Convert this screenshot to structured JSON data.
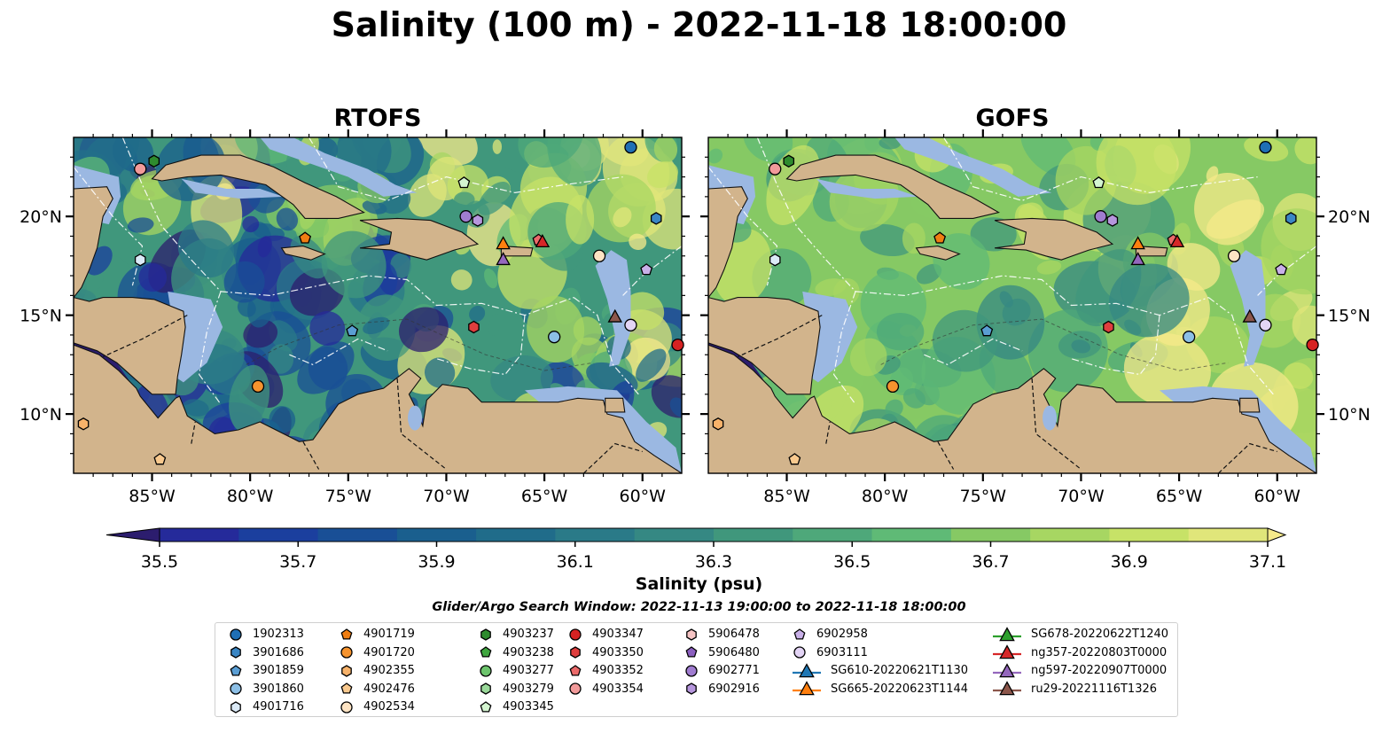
{
  "title": "Salinity (100 m) - 2022-11-18 18:00:00",
  "panels": [
    {
      "title": "RTOFS",
      "scheme": "rtofs"
    },
    {
      "title": "GOFS",
      "scheme": "gofs"
    }
  ],
  "lon_ticks": [
    "85°W",
    "80°W",
    "75°W",
    "70°W",
    "65°W",
    "60°W"
  ],
  "lat_ticks": [
    "20°N",
    "15°N",
    "10°N"
  ],
  "colorbar": {
    "label": "Salinity (psu)",
    "ticks": [
      "35.5",
      "35.7",
      "35.9",
      "36.1",
      "36.3",
      "36.5",
      "36.7",
      "36.9",
      "37.1"
    ],
    "colors": [
      "#2c1d6e",
      "#252a9a",
      "#1b3f9e",
      "#194f96",
      "#1a5f8e",
      "#206c8a",
      "#2a7a88",
      "#358883",
      "#40977c",
      "#4ea87a",
      "#5fba76",
      "#86c964",
      "#a7d662",
      "#c7e267",
      "#e0e67a",
      "#f6ea8a"
    ]
  },
  "search_window": "Glider/Argo Search Window: 2022-11-13 19:00:00 to 2022-11-18 18:00:00",
  "legend": [
    {
      "label": "1902313",
      "marker": "circle",
      "color": "#1f6fb5"
    },
    {
      "label": "3901686",
      "marker": "hexagon",
      "color": "#3a86c4"
    },
    {
      "label": "3901859",
      "marker": "pentagon",
      "color": "#5a9ed4"
    },
    {
      "label": "3901860",
      "marker": "circle",
      "color": "#8cbfe6"
    },
    {
      "label": "4901716",
      "marker": "hexagon",
      "color": "#dbeaf7"
    },
    {
      "label": "4901719",
      "marker": "pentagon",
      "color": "#f07e12"
    },
    {
      "label": "4901720",
      "marker": "circle",
      "color": "#f6932e"
    },
    {
      "label": "4902355",
      "marker": "hexagon",
      "color": "#f7b26a"
    },
    {
      "label": "4902476",
      "marker": "pentagon",
      "color": "#f9c98e"
    },
    {
      "label": "4902534",
      "marker": "circle",
      "color": "#fde3c3"
    },
    {
      "label": "4903237",
      "marker": "hexagon",
      "color": "#2e8b2e"
    },
    {
      "label": "4903238",
      "marker": "pentagon",
      "color": "#3fa63f"
    },
    {
      "label": "4903277",
      "marker": "circle",
      "color": "#6cc46c"
    },
    {
      "label": "4903279",
      "marker": "hexagon",
      "color": "#9ad99a"
    },
    {
      "label": "4903345",
      "marker": "pentagon",
      "color": "#d4f5d0"
    },
    {
      "label": "4903347",
      "marker": "circle",
      "color": "#d62222"
    },
    {
      "label": "4903350",
      "marker": "hexagon",
      "color": "#e03e3e"
    },
    {
      "label": "4903352",
      "marker": "pentagon",
      "color": "#eb6a6a"
    },
    {
      "label": "4903354",
      "marker": "circle",
      "color": "#f29a9a"
    },
    {
      "label": "5906478",
      "marker": "hexagon",
      "color": "#f6c4c4"
    },
    {
      "label": "5906480",
      "marker": "pentagon",
      "color": "#8b5fbf"
    },
    {
      "label": "6902771",
      "marker": "circle",
      "color": "#a07cd0"
    },
    {
      "label": "6902916",
      "marker": "hexagon",
      "color": "#b696dd"
    },
    {
      "label": "6902958",
      "marker": "pentagon",
      "color": "#c9b0e8"
    },
    {
      "label": "6903111",
      "marker": "circle",
      "color": "#e3d4f5"
    },
    {
      "label": "SG610-20220621T1130",
      "marker": "triangle",
      "color": "#1f77b4",
      "line": true
    },
    {
      "label": "SG665-20220623T1144",
      "marker": "triangle",
      "color": "#ff7f0e",
      "line": true
    },
    {
      "label": "SG678-20220622T1240",
      "marker": "triangle",
      "color": "#2ca02c",
      "line": true
    },
    {
      "label": "ng357-20220803T0000",
      "marker": "triangle",
      "color": "#d62728",
      "line": true
    },
    {
      "label": "ng597-20220907T0000",
      "marker": "triangle",
      "color": "#9467bd",
      "line": true
    },
    {
      "label": "ru29-20221116T1326",
      "marker": "triangle",
      "color": "#8c564b",
      "line": true
    }
  ],
  "map_points": [
    {
      "lon": -60.6,
      "lat": 23.5,
      "marker": "circle",
      "color": "#1f6fb5"
    },
    {
      "lon": -59.3,
      "lat": 19.9,
      "marker": "hexagon",
      "color": "#3a86c4"
    },
    {
      "lon": -74.8,
      "lat": 14.2,
      "marker": "pentagon",
      "color": "#5a9ed4"
    },
    {
      "lon": -64.5,
      "lat": 13.9,
      "marker": "circle",
      "color": "#8cbfe6"
    },
    {
      "lon": -85.6,
      "lat": 17.8,
      "marker": "hexagon",
      "color": "#dbeaf7"
    },
    {
      "lon": -77.2,
      "lat": 18.9,
      "marker": "pentagon",
      "color": "#f07e12"
    },
    {
      "lon": -79.6,
      "lat": 11.4,
      "marker": "circle",
      "color": "#f6932e"
    },
    {
      "lon": -88.5,
      "lat": 9.5,
      "marker": "hexagon",
      "color": "#f7b26a"
    },
    {
      "lon": -84.6,
      "lat": 7.7,
      "marker": "pentagon",
      "color": "#f9c98e"
    },
    {
      "lon": -62.2,
      "lat": 18.0,
      "marker": "circle",
      "color": "#fde3c3"
    },
    {
      "lon": -84.9,
      "lat": 22.8,
      "marker": "hexagon",
      "color": "#2e8b2e"
    },
    {
      "lon": -69.1,
      "lat": 21.7,
      "marker": "pentagon",
      "color": "#d4f5d0"
    },
    {
      "lon": -58.2,
      "lat": 13.5,
      "marker": "circle",
      "color": "#d62222"
    },
    {
      "lon": -68.6,
      "lat": 14.4,
      "marker": "hexagon",
      "color": "#e03e3e"
    },
    {
      "lon": -65.3,
      "lat": 18.8,
      "marker": "pentagon",
      "color": "#eb6a6a"
    },
    {
      "lon": -85.6,
      "lat": 22.4,
      "marker": "circle",
      "color": "#f29a9a"
    },
    {
      "lon": -69.0,
      "lat": 20.0,
      "marker": "circle",
      "color": "#a07cd0"
    },
    {
      "lon": -68.4,
      "lat": 19.8,
      "marker": "hexagon",
      "color": "#b696dd"
    },
    {
      "lon": -59.8,
      "lat": 17.3,
      "marker": "pentagon",
      "color": "#c9b0e8"
    },
    {
      "lon": -60.6,
      "lat": 14.5,
      "marker": "circle",
      "color": "#e3d4f5"
    },
    {
      "lon": -67.1,
      "lat": 18.6,
      "marker": "triangle",
      "color": "#ff7f0e"
    },
    {
      "lon": -65.1,
      "lat": 18.7,
      "marker": "triangle",
      "color": "#d62728"
    },
    {
      "lon": -67.1,
      "lat": 17.8,
      "marker": "triangle",
      "color": "#9467bd"
    },
    {
      "lon": -61.4,
      "lat": 14.9,
      "marker": "triangle",
      "color": "#8c564b"
    }
  ]
}
